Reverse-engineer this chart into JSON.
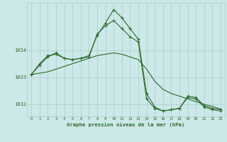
{
  "xlabel": "Graphe pression niveau de la mer (hPa)",
  "bg_color": "#cce8e8",
  "grid_color": "#aacccc",
  "line_color": "#2d6b2d",
  "hours": [
    0,
    1,
    2,
    3,
    4,
    5,
    6,
    7,
    8,
    9,
    10,
    11,
    12,
    13,
    14,
    15,
    16,
    17,
    18,
    19,
    20,
    21,
    22,
    23
  ],
  "series1": [
    1033.1,
    1033.5,
    1033.8,
    1033.85,
    1033.7,
    1033.65,
    1033.7,
    1033.75,
    1034.6,
    1034.9,
    1035.1,
    1034.8,
    1034.5,
    1034.3,
    1032.2,
    1031.85,
    1031.75,
    1031.8,
    1031.85,
    1032.3,
    1032.25,
    1031.95,
    1031.85,
    1031.8
  ],
  "series2": [
    1033.1,
    1033.45,
    1033.75,
    1033.9,
    1033.7,
    1033.65,
    1033.7,
    1033.8,
    1034.55,
    1035.0,
    1035.5,
    1035.2,
    1034.8,
    1034.4,
    1032.4,
    1031.9,
    1031.75,
    1031.8,
    1031.85,
    1032.25,
    1032.2,
    1031.9,
    1031.8,
    1031.75
  ],
  "series3": [
    1033.1,
    1033.15,
    1033.2,
    1033.3,
    1033.4,
    1033.5,
    1033.6,
    1033.7,
    1033.8,
    1033.85,
    1033.9,
    1033.85,
    1033.75,
    1033.65,
    1033.3,
    1032.85,
    1032.55,
    1032.4,
    1032.3,
    1032.2,
    1032.1,
    1032.0,
    1031.92,
    1031.82
  ],
  "ylim": [
    1031.55,
    1035.75
  ],
  "yticks": [
    1032,
    1033,
    1034
  ],
  "xtick_labels": [
    "0",
    "1",
    "2",
    "3",
    "4",
    "5",
    "6",
    "7",
    "8",
    "9",
    "10",
    "11",
    "12",
    "13",
    "14",
    "15",
    "16",
    "17",
    "18",
    "19",
    "20",
    "21",
    "22",
    "23"
  ]
}
